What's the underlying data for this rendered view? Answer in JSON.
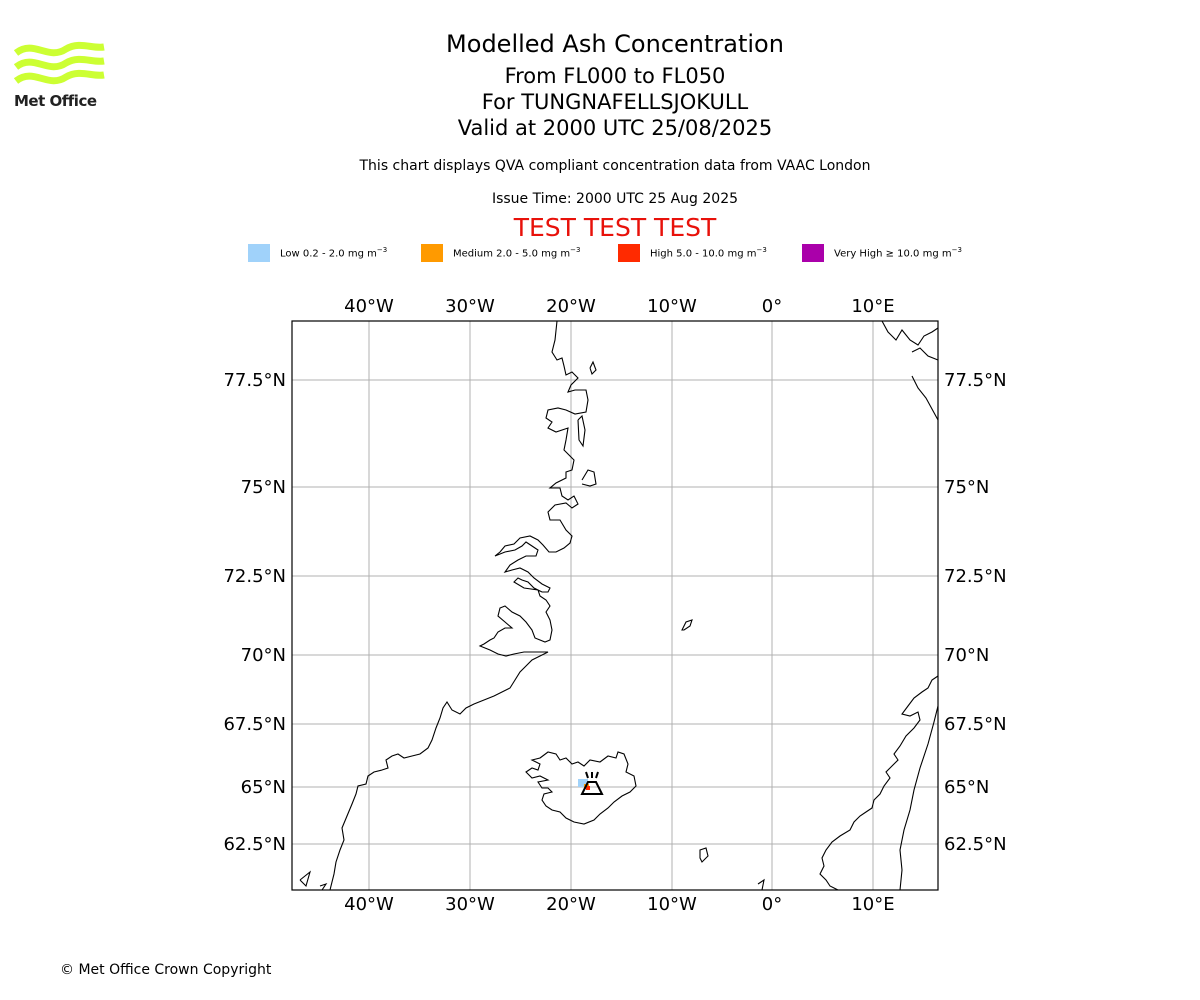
{
  "logo": {
    "text": "Met Office",
    "color": "#ccff33"
  },
  "header": {
    "title": "Modelled Ash Concentration",
    "subtitle_levels": "From FL000 to FL050",
    "subtitle_volcano": "For TUNGNAFELLSJOKULL",
    "subtitle_valid": "Valid at 2000 UTC 25/08/2025",
    "description": "This chart displays QVA compliant concentration data from VAAC London",
    "issue_time": "Issue Time: 2000 UTC 25 Aug 2025",
    "test_banner": "TEST TEST TEST",
    "test_color": "#e8110a"
  },
  "legend": [
    {
      "label": "Low 0.2 - 2.0 mg m",
      "color": "#a0d2fa"
    },
    {
      "label": "Medium 2.0 - 5.0 mg m",
      "color": "#ff9a00"
    },
    {
      "label": "High 5.0 - 10.0 mg m",
      "color": "#ff2a00"
    },
    {
      "label": "Very High ≥ 10.0 mg m",
      "color": "#aa00aa"
    }
  ],
  "legend_unit_exponent": "−3",
  "map": {
    "lon_ticks": [
      "40°W",
      "30°W",
      "20°W",
      "10°W",
      "0°",
      "10°E"
    ],
    "lat_ticks": [
      "77.5°N",
      "75°N",
      "72.5°N",
      "70°N",
      "67.5°N",
      "65°N",
      "62.5°N"
    ],
    "volcano_icon": "volcano-icon",
    "gridlines": true
  },
  "footer": {
    "copyright": "© Met Office Crown Copyright"
  }
}
